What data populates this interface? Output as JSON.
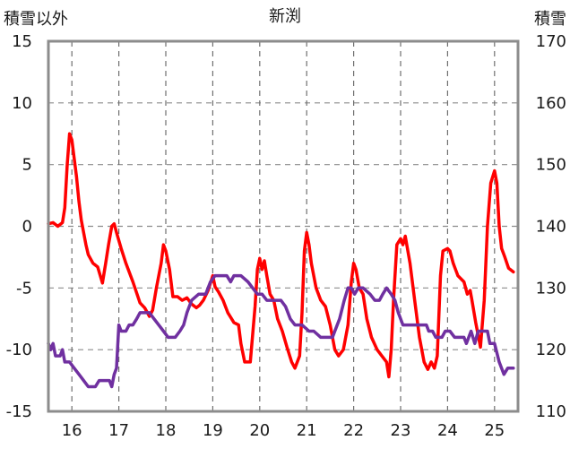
{
  "chart_data": {
    "type": "line",
    "title": "新渕",
    "ylabel_left": "積雪以外",
    "ylabel_right": "積雪",
    "ylim_left": [
      -15,
      15
    ],
    "ylim_right": [
      110,
      170
    ],
    "yticks_left": [
      "15",
      "10",
      "5",
      "0",
      "-5",
      "-10",
      "-15"
    ],
    "yticks_right": [
      "170",
      "160",
      "150",
      "140",
      "130",
      "120",
      "110"
    ],
    "xlim": [
      15.5,
      25.5
    ],
    "xticks": [
      "16",
      "17",
      "18",
      "19",
      "20",
      "21",
      "22",
      "23",
      "24",
      "25"
    ],
    "grid": true,
    "series": [
      {
        "axis": "left",
        "color": "#ff0000",
        "points": [
          [
            15.5,
            0.2
          ],
          [
            15.6,
            0.3
          ],
          [
            15.7,
            0.0
          ],
          [
            15.8,
            0.3
          ],
          [
            15.85,
            1.5
          ],
          [
            15.9,
            5.0
          ],
          [
            15.95,
            7.5
          ],
          [
            16.0,
            7.0
          ],
          [
            16.05,
            5.5
          ],
          [
            16.1,
            4.0
          ],
          [
            16.15,
            2.0
          ],
          [
            16.2,
            0.5
          ],
          [
            16.25,
            -0.5
          ],
          [
            16.3,
            -1.5
          ],
          [
            16.35,
            -2.3
          ],
          [
            16.45,
            -3.0
          ],
          [
            16.55,
            -3.3
          ],
          [
            16.65,
            -4.6
          ],
          [
            16.72,
            -3.0
          ],
          [
            16.78,
            -1.5
          ],
          [
            16.85,
            0.0
          ],
          [
            16.9,
            0.2
          ],
          [
            16.95,
            -0.5
          ],
          [
            17.05,
            -1.8
          ],
          [
            17.15,
            -3.0
          ],
          [
            17.3,
            -4.5
          ],
          [
            17.45,
            -6.2
          ],
          [
            17.55,
            -6.6
          ],
          [
            17.65,
            -7.3
          ],
          [
            17.72,
            -6.8
          ],
          [
            17.8,
            -5.0
          ],
          [
            17.9,
            -3.0
          ],
          [
            17.95,
            -1.5
          ],
          [
            18.0,
            -2.0
          ],
          [
            18.08,
            -3.5
          ],
          [
            18.15,
            -5.7
          ],
          [
            18.25,
            -5.7
          ],
          [
            18.35,
            -6.0
          ],
          [
            18.45,
            -5.8
          ],
          [
            18.55,
            -6.3
          ],
          [
            18.65,
            -6.6
          ],
          [
            18.72,
            -6.4
          ],
          [
            18.8,
            -6.0
          ],
          [
            18.9,
            -5.2
          ],
          [
            19.0,
            -4.0
          ],
          [
            19.05,
            -4.9
          ],
          [
            19.12,
            -5.3
          ],
          [
            19.22,
            -6.0
          ],
          [
            19.32,
            -7.0
          ],
          [
            19.45,
            -7.8
          ],
          [
            19.55,
            -8.0
          ],
          [
            19.6,
            -9.5
          ],
          [
            19.68,
            -11.0
          ],
          [
            19.8,
            -11.0
          ],
          [
            19.9,
            -6.5
          ],
          [
            19.95,
            -3.5
          ],
          [
            20.0,
            -2.6
          ],
          [
            20.05,
            -3.5
          ],
          [
            20.1,
            -2.8
          ],
          [
            20.15,
            -4.0
          ],
          [
            20.22,
            -5.5
          ],
          [
            20.3,
            -6.0
          ],
          [
            20.38,
            -7.5
          ],
          [
            20.48,
            -8.5
          ],
          [
            20.58,
            -9.8
          ],
          [
            20.68,
            -11.0
          ],
          [
            20.75,
            -11.5
          ],
          [
            20.85,
            -10.5
          ],
          [
            20.9,
            -7.0
          ],
          [
            20.95,
            -2.0
          ],
          [
            21.0,
            -0.5
          ],
          [
            21.05,
            -1.5
          ],
          [
            21.1,
            -3.0
          ],
          [
            21.2,
            -5.0
          ],
          [
            21.3,
            -6.0
          ],
          [
            21.4,
            -6.5
          ],
          [
            21.5,
            -8.0
          ],
          [
            21.6,
            -10.0
          ],
          [
            21.68,
            -10.5
          ],
          [
            21.78,
            -10.0
          ],
          [
            21.88,
            -8.0
          ],
          [
            21.95,
            -4.5
          ],
          [
            22.0,
            -3.0
          ],
          [
            22.05,
            -3.5
          ],
          [
            22.12,
            -5.0
          ],
          [
            22.2,
            -5.5
          ],
          [
            22.28,
            -7.5
          ],
          [
            22.38,
            -9.0
          ],
          [
            22.5,
            -10.0
          ],
          [
            22.6,
            -10.5
          ],
          [
            22.7,
            -11.0
          ],
          [
            22.75,
            -12.2
          ],
          [
            22.8,
            -10.0
          ],
          [
            22.85,
            -6.0
          ],
          [
            22.92,
            -1.5
          ],
          [
            23.0,
            -1.0
          ],
          [
            23.05,
            -1.5
          ],
          [
            23.1,
            -0.8
          ],
          [
            23.2,
            -3.0
          ],
          [
            23.3,
            -6.0
          ],
          [
            23.4,
            -9.0
          ],
          [
            23.5,
            -11.0
          ],
          [
            23.58,
            -11.6
          ],
          [
            23.65,
            -11.0
          ],
          [
            23.72,
            -11.5
          ],
          [
            23.78,
            -10.5
          ],
          [
            23.85,
            -4.0
          ],
          [
            23.9,
            -2.0
          ],
          [
            24.0,
            -1.8
          ],
          [
            24.05,
            -2.0
          ],
          [
            24.12,
            -3.0
          ],
          [
            24.22,
            -4.0
          ],
          [
            24.35,
            -4.5
          ],
          [
            24.42,
            -5.5
          ],
          [
            24.48,
            -5.2
          ],
          [
            24.52,
            -6.0
          ],
          [
            24.6,
            -7.8
          ],
          [
            24.7,
            -9.8
          ],
          [
            24.78,
            -6.0
          ],
          [
            24.85,
            0.0
          ],
          [
            24.92,
            3.5
          ],
          [
            25.0,
            4.5
          ],
          [
            25.05,
            3.5
          ],
          [
            25.1,
            0.0
          ],
          [
            25.15,
            -1.8
          ],
          [
            25.22,
            -2.5
          ],
          [
            25.3,
            -3.4
          ],
          [
            25.4,
            -3.7
          ]
        ]
      },
      {
        "axis": "right",
        "color": "#7030a0",
        "points": [
          [
            15.5,
            121
          ],
          [
            15.55,
            120
          ],
          [
            15.6,
            121
          ],
          [
            15.65,
            119
          ],
          [
            15.75,
            119
          ],
          [
            15.8,
            120
          ],
          [
            15.85,
            118
          ],
          [
            15.95,
            118
          ],
          [
            16.05,
            117
          ],
          [
            16.15,
            116
          ],
          [
            16.25,
            115
          ],
          [
            16.35,
            114
          ],
          [
            16.5,
            114
          ],
          [
            16.58,
            115
          ],
          [
            16.7,
            115
          ],
          [
            16.8,
            115
          ],
          [
            16.85,
            114
          ],
          [
            16.9,
            116
          ],
          [
            16.95,
            117
          ],
          [
            17.0,
            124
          ],
          [
            17.05,
            123
          ],
          [
            17.15,
            123
          ],
          [
            17.22,
            124
          ],
          [
            17.3,
            124
          ],
          [
            17.38,
            125
          ],
          [
            17.45,
            126
          ],
          [
            17.55,
            126
          ],
          [
            17.65,
            126
          ],
          [
            17.75,
            125
          ],
          [
            17.85,
            124
          ],
          [
            17.95,
            123
          ],
          [
            18.05,
            122
          ],
          [
            18.2,
            122
          ],
          [
            18.3,
            123
          ],
          [
            18.38,
            124
          ],
          [
            18.45,
            126
          ],
          [
            18.55,
            128
          ],
          [
            18.7,
            129
          ],
          [
            18.85,
            129
          ],
          [
            18.95,
            131
          ],
          [
            19.05,
            132
          ],
          [
            19.2,
            132
          ],
          [
            19.3,
            132
          ],
          [
            19.38,
            131
          ],
          [
            19.45,
            132
          ],
          [
            19.6,
            132
          ],
          [
            19.75,
            131
          ],
          [
            19.85,
            130
          ],
          [
            19.95,
            129
          ],
          [
            20.05,
            129
          ],
          [
            20.15,
            128
          ],
          [
            20.3,
            128
          ],
          [
            20.45,
            128
          ],
          [
            20.55,
            127
          ],
          [
            20.65,
            125
          ],
          [
            20.75,
            124
          ],
          [
            20.9,
            124
          ],
          [
            21.05,
            123
          ],
          [
            21.15,
            123
          ],
          [
            21.3,
            122
          ],
          [
            21.45,
            122
          ],
          [
            21.55,
            122
          ],
          [
            21.6,
            123
          ],
          [
            21.7,
            125
          ],
          [
            21.8,
            128
          ],
          [
            21.88,
            130
          ],
          [
            21.95,
            130
          ],
          [
            22.02,
            129
          ],
          [
            22.1,
            130
          ],
          [
            22.2,
            130
          ],
          [
            22.35,
            129
          ],
          [
            22.45,
            128
          ],
          [
            22.55,
            128
          ],
          [
            22.62,
            129
          ],
          [
            22.7,
            130
          ],
          [
            22.8,
            129
          ],
          [
            22.88,
            128
          ],
          [
            22.95,
            126
          ],
          [
            23.05,
            124
          ],
          [
            23.2,
            124
          ],
          [
            23.35,
            124
          ],
          [
            23.45,
            124
          ],
          [
            23.55,
            124
          ],
          [
            23.6,
            123
          ],
          [
            23.68,
            123
          ],
          [
            23.75,
            122
          ],
          [
            23.82,
            122
          ],
          [
            23.88,
            122
          ],
          [
            23.95,
            123
          ],
          [
            24.05,
            123
          ],
          [
            24.15,
            122
          ],
          [
            24.25,
            122
          ],
          [
            24.35,
            122
          ],
          [
            24.4,
            121
          ],
          [
            24.45,
            122
          ],
          [
            24.5,
            123
          ],
          [
            24.58,
            121
          ],
          [
            24.65,
            123
          ],
          [
            24.75,
            123
          ],
          [
            24.85,
            123
          ],
          [
            24.9,
            121
          ],
          [
            25.0,
            121
          ],
          [
            25.1,
            118
          ],
          [
            25.2,
            116
          ],
          [
            25.28,
            117
          ],
          [
            25.4,
            117
          ]
        ]
      }
    ]
  }
}
